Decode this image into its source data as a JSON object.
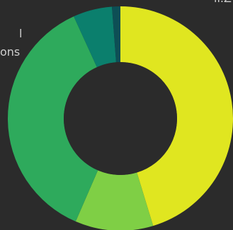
{
  "chart_data": {
    "type": "pie",
    "variant": "donut",
    "slices": [
      {
        "value": 45.3,
        "color": "#e0e620"
      },
      {
        "value": 11.2,
        "color": "#7fcf45"
      },
      {
        "value": 36.7,
        "color": "#2eaa5c"
      },
      {
        "value": 5.6,
        "color": "#0b7f6d"
      },
      {
        "value": 1.2,
        "color": "#0d4f55"
      }
    ]
  },
  "partial_labels": {
    "top_right": "ll.Z",
    "left_line_1": "l",
    "left_line_2": "ons"
  },
  "colors": {
    "background": "#2b2b2b",
    "label_text": "#cfcfcf"
  }
}
